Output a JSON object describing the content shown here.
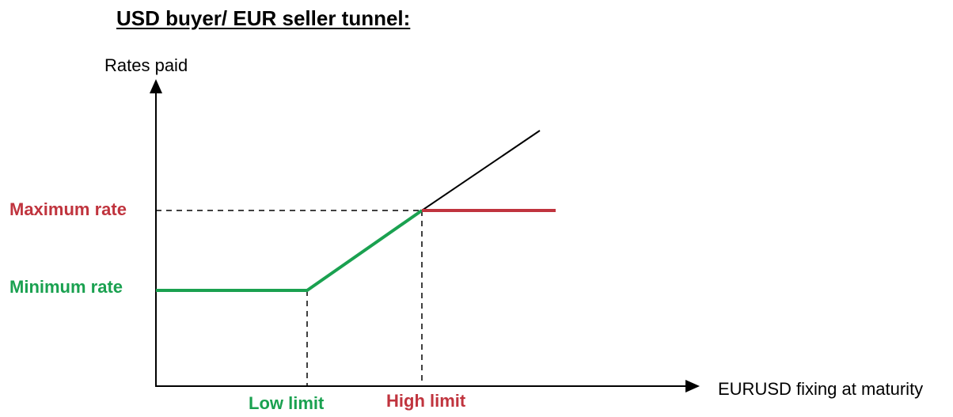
{
  "title": "USD buyer/ EUR seller tunnel:",
  "axes": {
    "y_label": "Rates paid",
    "x_label": "EURUSD fixing at maturity"
  },
  "levels": {
    "maximum_rate": "Maximum rate",
    "minimum_rate": "Minimum rate"
  },
  "limits": {
    "low_limit": "Low limit",
    "high_limit": "High limit"
  },
  "colors": {
    "green": "#1aa150",
    "red": "#c0343e",
    "black": "#000000"
  }
}
